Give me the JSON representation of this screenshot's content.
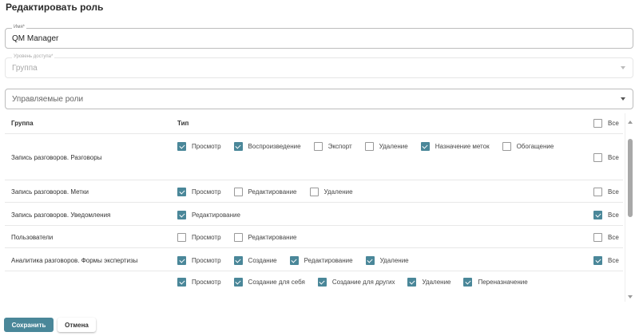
{
  "title": "Редактировать роль",
  "name_field": {
    "label": "Имя*",
    "value": "QM Manager"
  },
  "access_field": {
    "label": "Уровень доступа*",
    "value": "Группа"
  },
  "roles_field": {
    "placeholder": "Управляемые роли"
  },
  "table": {
    "header": {
      "group": "Группа",
      "type": "Тип",
      "all": "Все",
      "all_checked": false
    },
    "rows": [
      {
        "group": "Запись разговоров. Разговоры",
        "all": "Все",
        "all_checked": false,
        "items": [
          {
            "label": "Просмотр",
            "checked": true
          },
          {
            "label": "Воспроизведение",
            "checked": true
          },
          {
            "label": "Экспорт",
            "checked": false
          },
          {
            "label": "Удаление",
            "checked": false
          },
          {
            "label": "Назначение меток",
            "checked": true
          },
          {
            "label": "Обогащение",
            "checked": false
          }
        ]
      },
      {
        "group": "Запись разговоров. Метки",
        "all": "Все",
        "all_checked": false,
        "items": [
          {
            "label": "Просмотр",
            "checked": true
          },
          {
            "label": "Редактирование",
            "checked": false
          },
          {
            "label": "Удаление",
            "checked": false
          }
        ]
      },
      {
        "group": "Запись разговоров. Уведомления",
        "all": "Все",
        "all_checked": true,
        "items": [
          {
            "label": "Редактирование",
            "checked": true
          }
        ]
      },
      {
        "group": "Пользователи",
        "all": "Все",
        "all_checked": false,
        "items": [
          {
            "label": "Просмотр",
            "checked": false
          },
          {
            "label": "Редактирование",
            "checked": false
          }
        ]
      },
      {
        "group": "Аналитика разговоров. Формы экспертизы",
        "all": "Все",
        "all_checked": true,
        "items": [
          {
            "label": "Просмотр",
            "checked": true
          },
          {
            "label": "Создание",
            "checked": true
          },
          {
            "label": "Редактирование",
            "checked": true
          },
          {
            "label": "Удаление",
            "checked": true
          }
        ]
      },
      {
        "group": "",
        "items": [
          {
            "label": "Просмотр",
            "checked": true
          },
          {
            "label": "Создание для себя",
            "checked": true
          },
          {
            "label": "Создание для других",
            "checked": true
          },
          {
            "label": "Удаление",
            "checked": true
          },
          {
            "label": "Переназначение",
            "checked": true
          }
        ]
      }
    ]
  },
  "buttons": {
    "save": "Сохранить",
    "cancel": "Отмена"
  },
  "colors": {
    "accent": "#4a8799"
  }
}
